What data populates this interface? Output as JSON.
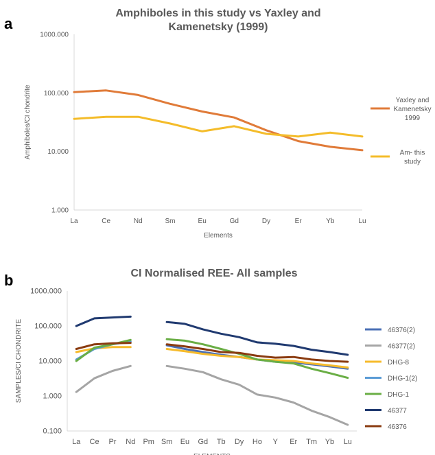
{
  "panel_labels": [
    "a",
    "b"
  ],
  "colors": {
    "yaxley": "#e07b39",
    "am_study": "#f4bc2a",
    "46376(2)": "#4a6fb5",
    "46377(2)": "#a5a5a5",
    "DHG-8": "#f6bb2c",
    "DHG-1(2)": "#5a9bd5",
    "DHG-1": "#6aae45",
    "46377": "#203a70",
    "46376": "#8a3b10",
    "axis": "#d9d9d9",
    "text": "#595959"
  },
  "chart_data": [
    {
      "type": "line",
      "title": "Amphiboles in this study vs Yaxley and Kamenetsky (1999)",
      "title_lines": [
        "Amphiboles in this study vs Yaxley and",
        "Kamenetsky (1999)"
      ],
      "xlabel": "Elements",
      "ylabel": "Amphiboles/CI chondrite",
      "y_scale": "log",
      "ylim": [
        1,
        1000
      ],
      "y_ticks": [
        "1000.000",
        "100.000",
        "10.000",
        "1.000"
      ],
      "categories": [
        "La",
        "Ce",
        "Nd",
        "Sm",
        "Eu",
        "Gd",
        "Dy",
        "Er",
        "Yb",
        "Lu"
      ],
      "grid": false,
      "legend": "right",
      "series": [
        {
          "name": "Yaxley and Kamenetsky 1999",
          "legend_lines": [
            "Yaxley and",
            "Kamenetsky",
            "1999"
          ],
          "color_key": "yaxley",
          "values": [
            103,
            110,
            92,
            65,
            48,
            38,
            23,
            15,
            12,
            10.5
          ]
        },
        {
          "name": "Am- this study",
          "legend_lines": [
            "Am- this",
            "study"
          ],
          "color_key": "am_study",
          "values": [
            36,
            39,
            39,
            30,
            22,
            27,
            20,
            18,
            21,
            18
          ]
        }
      ]
    },
    {
      "type": "line",
      "title": "CI Normalised REE- All samples",
      "xlabel": "ELEMENTS",
      "ylabel": "SAMPLES/CI CHONDRITE",
      "y_scale": "log",
      "ylim": [
        0.1,
        1000
      ],
      "y_ticks": [
        "1000.000",
        "100.000",
        "10.000",
        "1.000",
        "0.100"
      ],
      "categories": [
        "La",
        "Ce",
        "Pr",
        "Nd",
        "Pm",
        "Sm",
        "Eu",
        "Gd",
        "Tb",
        "Dy",
        "Ho",
        "Y",
        "Er",
        "Tm",
        "Yb",
        "Lu"
      ],
      "grid": false,
      "legend": "right",
      "series": [
        {
          "name": "46376(2)",
          "color_key": "46376(2)",
          "values": [
            null,
            null,
            null,
            null,
            null,
            28,
            22,
            18,
            15,
            13,
            11,
            9.5,
            9,
            8,
            7,
            6
          ]
        },
        {
          "name": "46377(2)",
          "color_key": "46377(2)",
          "values": [
            1.3,
            3.2,
            5.2,
            7.2,
            null,
            7.2,
            6,
            4.8,
            3,
            2.1,
            1.1,
            0.9,
            0.65,
            0.38,
            0.25,
            0.15
          ]
        },
        {
          "name": "DHG-8",
          "color_key": "DHG-8",
          "values": [
            18,
            23,
            25,
            25,
            null,
            22,
            19,
            16,
            14,
            13,
            11,
            10.5,
            10,
            8.5,
            7.5,
            6.5
          ]
        },
        {
          "name": "DHG-1(2)",
          "color_key": "DHG-1(2)",
          "values": [
            11,
            22,
            30,
            36,
            null,
            null,
            null,
            null,
            null,
            null,
            null,
            null,
            null,
            null,
            null,
            null
          ]
        },
        {
          "name": "DHG-1",
          "color_key": "DHG-1",
          "values": [
            10,
            24,
            30,
            40,
            null,
            42,
            38,
            30,
            22,
            16,
            11,
            9.5,
            8.5,
            6,
            4.5,
            3.3
          ]
        },
        {
          "name": "46377",
          "color_key": "46377",
          "values": [
            100,
            165,
            175,
            185,
            null,
            130,
            115,
            80,
            60,
            48,
            34,
            31,
            27,
            21,
            18,
            15
          ]
        },
        {
          "name": "46376",
          "color_key": "46376",
          "values": [
            22,
            30,
            32,
            33,
            null,
            30,
            26,
            22,
            18,
            17,
            14,
            12.5,
            13,
            11,
            10,
            9.5
          ]
        }
      ]
    }
  ]
}
